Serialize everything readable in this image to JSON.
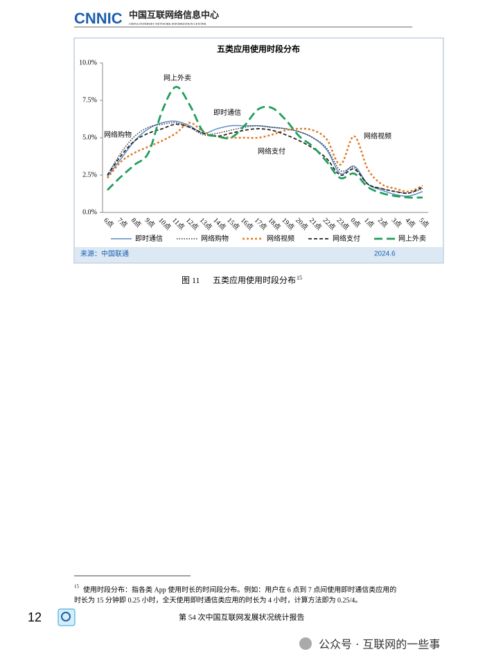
{
  "header": {
    "logo": "CNNIC",
    "title": "中国互联网络信息中心",
    "subtitle": "CHINA INTERNET NETWORK INFORMATION CENTER"
  },
  "chart_data": {
    "type": "line",
    "title": "五类应用使用时段分布",
    "categories": [
      "6点",
      "7点",
      "8点",
      "9点",
      "10点",
      "11点",
      "12点",
      "13点",
      "14点",
      "15点",
      "16点",
      "17点",
      "18点",
      "19点",
      "20点",
      "21点",
      "22点",
      "23点",
      "0点",
      "1点",
      "2点",
      "3点",
      "4点",
      "5点"
    ],
    "series": [
      {
        "name": "即时通信",
        "color": "#5b8ac6",
        "style": "solid",
        "values": [
          2.4,
          3.6,
          4.8,
          5.6,
          6.0,
          6.1,
          5.8,
          5.3,
          5.6,
          5.8,
          5.8,
          5.8,
          5.7,
          5.6,
          5.4,
          5.0,
          4.2,
          2.6,
          3.1,
          1.9,
          1.5,
          1.2,
          1.1,
          1.4
        ]
      },
      {
        "name": "网络购物",
        "color": "#333333",
        "style": "dotted",
        "values": [
          2.5,
          4.0,
          5.1,
          5.7,
          5.9,
          6.0,
          5.7,
          5.2,
          5.3,
          5.5,
          5.7,
          5.8,
          5.7,
          5.6,
          5.4,
          5.0,
          4.3,
          2.8,
          3.0,
          1.9,
          1.6,
          1.4,
          1.3,
          1.6
        ]
      },
      {
        "name": "网络视频",
        "color": "#e07b22",
        "style": "dotted-thick",
        "values": [
          2.3,
          3.4,
          4.0,
          4.4,
          4.8,
          5.3,
          6.0,
          5.4,
          5.1,
          5.0,
          5.0,
          5.0,
          5.2,
          5.5,
          5.6,
          5.5,
          4.9,
          3.2,
          5.1,
          2.9,
          1.9,
          1.6,
          1.4,
          1.8
        ]
      },
      {
        "name": "网络支付",
        "color": "#222222",
        "style": "dashed",
        "values": [
          2.5,
          3.8,
          4.8,
          5.3,
          5.6,
          5.9,
          5.7,
          5.3,
          5.1,
          5.3,
          5.5,
          5.6,
          5.5,
          5.2,
          4.8,
          4.3,
          3.6,
          2.5,
          2.9,
          1.9,
          1.6,
          1.4,
          1.3,
          1.7
        ]
      },
      {
        "name": "网上外卖",
        "color": "#1e9e5a",
        "style": "longdash",
        "values": [
          1.5,
          2.4,
          3.2,
          4.0,
          6.8,
          8.4,
          7.2,
          5.4,
          5.1,
          5.0,
          5.8,
          6.9,
          7.0,
          6.2,
          5.1,
          4.4,
          3.4,
          2.3,
          2.6,
          1.7,
          1.3,
          1.1,
          1.0,
          1.0
        ]
      }
    ],
    "ylim": [
      0,
      10
    ],
    "yticks": [
      {
        "value": 0,
        "label": "0.0%"
      },
      {
        "value": 2.5,
        "label": "2.5%"
      },
      {
        "value": 5,
        "label": "5.0%"
      },
      {
        "value": 7.5,
        "label": "7.5%"
      },
      {
        "value": 10,
        "label": "10.0%"
      }
    ],
    "annotations": [
      "网上外卖",
      "即时通信",
      "网络购物",
      "网络视频",
      "网络支付"
    ],
    "source": "来源：中国联通",
    "date": "2024.6",
    "legend": "bottom"
  },
  "caption": {
    "label": "图 11",
    "text": "五类应用使用时段分布",
    "ref": "15"
  },
  "footnote": {
    "number": "15",
    "lines": [
      "使用时段分布：指各类 App 使用时长的时间段分布。例如：用户在 6 点到 7 点间使用即时通信类应用的",
      "时长为 15 分钟即 0.25 小时，全天使用即时通信类应用的时长为 4 小时，计算方法即为 0.25/4。"
    ]
  },
  "footer": {
    "page": "12",
    "text": "第 54 次中国互联网发展状况统计报告",
    "watermark": "公众号 · 互联网的一些事"
  }
}
